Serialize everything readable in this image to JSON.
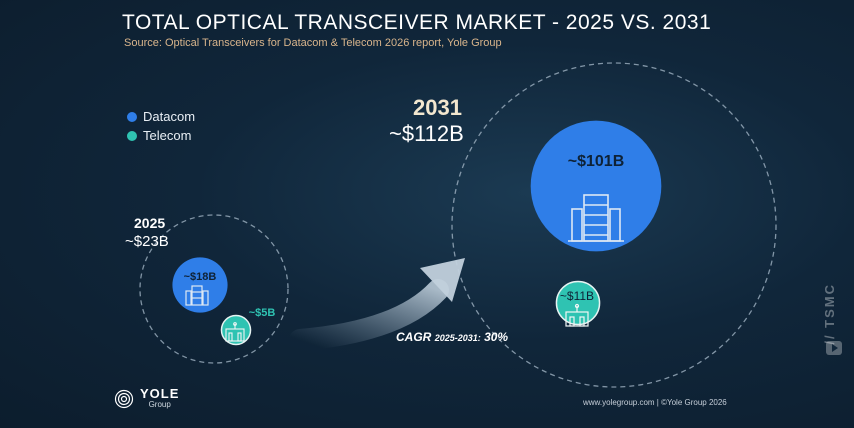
{
  "header": {
    "title": "TOTAL OPTICAL TRANSCEIVER MARKET - 2025 VS. 2031",
    "subtitle": "Source: Optical Transceivers for Datacom & Telecom 2026 report, Yole Group"
  },
  "colors": {
    "datacom": "#2f7ee8",
    "telecom": "#2fc3b2",
    "background": "#10263a",
    "accent_gold": "#d9b58c"
  },
  "chart_data": {
    "type": "bubble",
    "title": "TOTAL OPTICAL TRANSCEIVER MARKET - 2025 VS. 2031",
    "unit": "$B",
    "legend": [
      "Datacom",
      "Telecom"
    ],
    "legend_position": "top-left",
    "groups": [
      {
        "year": "2025",
        "total": 23,
        "total_label": "~$23B",
        "segments": [
          {
            "name": "Datacom",
            "value": 18,
            "label": "~$18B"
          },
          {
            "name": "Telecom",
            "value": 5,
            "label": "~$5B"
          }
        ]
      },
      {
        "year": "2031",
        "total": 112,
        "total_label": "~$112B",
        "segments": [
          {
            "name": "Datacom",
            "value": 101,
            "label": "~$101B"
          },
          {
            "name": "Telecom",
            "value": 11,
            "label": "~$11B"
          }
        ]
      }
    ],
    "annotation": {
      "cagr_label": "CAGR",
      "cagr_period": "2025-2031:",
      "cagr_value": "30%"
    }
  },
  "footer": {
    "logo_text": "YOLE",
    "logo_sub": "Group",
    "credit": "www.yolegroup.com | ©Yole Group 2026"
  },
  "watermark": "// TSMC",
  "icons": {
    "datacom": "server-rack-icon",
    "telecom": "network-building-icon",
    "logo": "spiral-logo-icon",
    "video": "play-icon"
  }
}
